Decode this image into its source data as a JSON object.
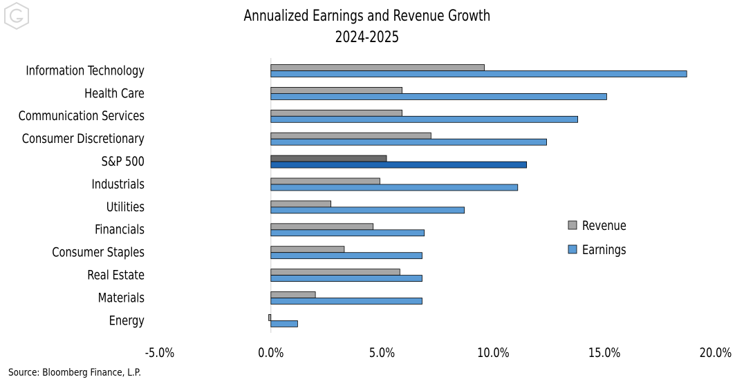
{
  "chart_data": {
    "type": "bar",
    "orientation": "horizontal",
    "title": "Annualized Earnings and Revenue Growth",
    "subtitle": "2024-2025",
    "categories": [
      "Information Technology",
      "Health Care",
      "Communication Services",
      "Consumer Discretionary",
      "S&P 500",
      "Industrials",
      "Utilities",
      "Financials",
      "Consumer Staples",
      "Real Estate",
      "Materials",
      "Energy"
    ],
    "highlight_category": "S&P 500",
    "series": [
      {
        "name": "Revenue",
        "color": "#a6a6a6",
        "highlight_color": "#6b6b6b",
        "values": [
          9.6,
          5.9,
          5.9,
          7.2,
          5.2,
          4.9,
          2.7,
          4.6,
          3.3,
          5.8,
          2.0,
          -0.1
        ]
      },
      {
        "name": "Earnings",
        "color": "#5b9bd5",
        "highlight_color": "#1f66b2",
        "values": [
          18.7,
          15.1,
          13.8,
          12.4,
          11.5,
          11.1,
          8.7,
          6.9,
          6.8,
          6.8,
          6.8,
          1.2
        ]
      }
    ],
    "xlim": [
      -5,
      20
    ],
    "xticks": [
      "-5.0%",
      "0.0%",
      "5.0%",
      "10.0%",
      "15.0%",
      "20.0%"
    ],
    "xtick_values": [
      -5,
      0,
      5,
      10,
      15,
      20
    ],
    "xlabel": "",
    "ylabel": "",
    "grid": false,
    "legend_position": "right-middle"
  },
  "source": "Source: Bloomberg Finance, L.P.",
  "logo_icon": "stylized-g-logo"
}
